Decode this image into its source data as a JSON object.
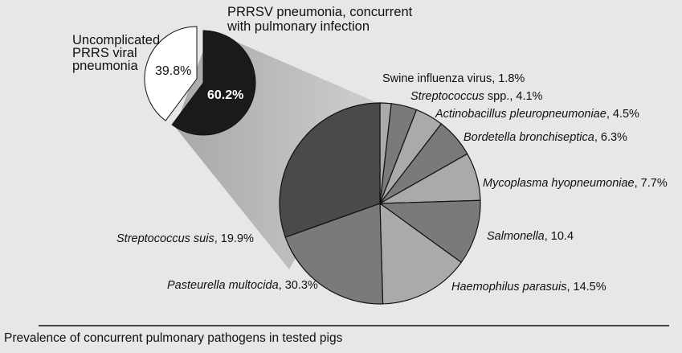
{
  "chart_data": [
    {
      "type": "pie",
      "title": "",
      "slices": [
        {
          "label_lines": [
            "Uncomplicated",
            "PRRS viral",
            "pneumonia"
          ],
          "value": 39.8,
          "value_label": "39.8%",
          "color": "#ffffff",
          "exploded": true
        },
        {
          "label_lines": [
            "PRRSV pneumonia, concurrent",
            "with pulmonary infection"
          ],
          "value": 60.2,
          "value_label": "60.2%",
          "color": "#1a1a1a",
          "exploded": false
        }
      ]
    },
    {
      "type": "pie",
      "title": "",
      "breakdown_of": "PRRSV pneumonia, concurrent with pulmonary infection",
      "slices": [
        {
          "name": "Swine influenza virus",
          "italic": false,
          "suffix": ", 1.8%",
          "value": 1.8,
          "color": "#aaaaaa"
        },
        {
          "name": "Streptococcus",
          "italic": true,
          "suffix": " spp., 4.1%",
          "value": 4.1,
          "color": "#7a7a7a"
        },
        {
          "name": "Actinobacillus pleuropneumoniae",
          "italic": true,
          "suffix": ", 4.5%",
          "value": 4.5,
          "color": "#aaaaaa"
        },
        {
          "name": "Bordetella bronchiseptica",
          "italic": true,
          "suffix": ", 6.3%",
          "value": 6.3,
          "color": "#7a7a7a"
        },
        {
          "name": "Mycoplasma hyopneumoniae",
          "italic": true,
          "suffix": ", 7.7%",
          "value": 7.7,
          "color": "#aaaaaa"
        },
        {
          "name": "Salmonella",
          "italic": true,
          "suffix": ", 10.4",
          "value": 10.4,
          "color": "#7a7a7a"
        },
        {
          "name": "Haemophilus parasuis",
          "italic": true,
          "suffix": ", 14.5%",
          "value": 14.5,
          "color": "#aaaaaa"
        },
        {
          "name": "Streptococcus suis",
          "italic": true,
          "suffix": ", 19.9%",
          "value": 19.9,
          "color": "#7a7a7a"
        },
        {
          "name": "Pasteurella multocida",
          "italic": true,
          "suffix": ", 30.3%",
          "value": 30.3,
          "color": "#4a4a4a"
        }
      ]
    }
  ],
  "caption": "Prevalence of concurrent pulmonary pathogens in tested pigs",
  "colors": {
    "background": "#e7e7e7",
    "connector": "#b8b8b8",
    "outline": "#111111"
  }
}
